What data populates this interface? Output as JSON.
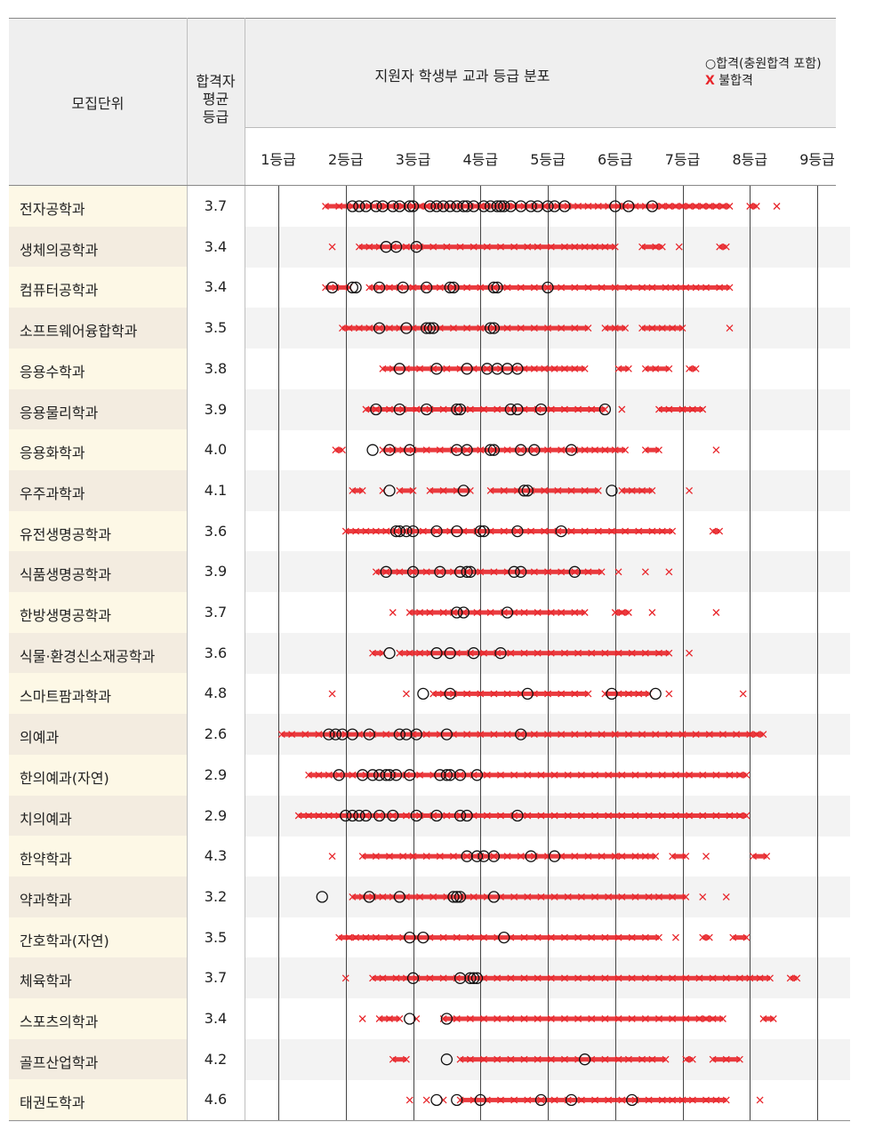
{
  "header": {
    "unit": "모집단위",
    "avg_line1": "합격자",
    "avg_line2": "평균",
    "avg_line3": "등급",
    "dist_title": "지원자 학생부 교과 등급 분포",
    "legend_pass": "○합격(충원합격 포함)",
    "legend_fail_symbol": "X",
    "legend_fail": "불합격",
    "grades": [
      "1등급",
      "2등급",
      "3등급",
      "4등급",
      "5등급",
      "6등급",
      "7등급",
      "8등급",
      "9등급"
    ]
  },
  "colors": {
    "fail": "#e8262b",
    "pass": "#111111",
    "name_band_odd": "#fdf8e6",
    "name_band_even": "#f3ece0"
  },
  "chart_data": {
    "type": "scatter",
    "title": "지원자 학생부 교과 등급 분포",
    "xlabel": "등급",
    "xlim": [
      1,
      9
    ],
    "categories": [
      "전자공학과",
      "생체의공학과",
      "컴퓨터공학과",
      "소프트웨어융합학과",
      "응용수학과",
      "응용물리학과",
      "응용화학과",
      "우주과학과",
      "유전생명공학과",
      "식품생명공학과",
      "한방생명공학과",
      "식물·환경신소재공학과",
      "스마트팜과학과",
      "의예과",
      "한의예과(자연)",
      "치의예과",
      "한약학과",
      "약과학과",
      "간호학과(자연)",
      "체육학과",
      "스포츠의학과",
      "골프산업학과",
      "태권도학과"
    ],
    "average_grade": [
      3.7,
      3.4,
      3.4,
      3.5,
      3.8,
      3.9,
      4.0,
      4.1,
      3.6,
      3.9,
      3.7,
      3.6,
      4.8,
      2.6,
      2.9,
      2.9,
      4.3,
      3.2,
      3.5,
      3.7,
      3.4,
      4.2,
      4.6
    ],
    "series": [
      {
        "name": "합격(충원합격 포함)",
        "marker": "circle",
        "values": [
          [
            2.1,
            2.2,
            2.3,
            2.45,
            2.55,
            2.7,
            2.8,
            2.95,
            3.0,
            3.25,
            3.35,
            3.45,
            3.55,
            3.65,
            3.75,
            3.8,
            3.9,
            4.05,
            4.15,
            4.25,
            4.3,
            4.35,
            4.45,
            4.6,
            4.75,
            4.85,
            5.0,
            5.1,
            5.25,
            6.0,
            6.2,
            6.55
          ],
          [
            2.6,
            2.75,
            3.05
          ],
          [
            1.8,
            2.1,
            2.15,
            2.5,
            2.85,
            3.2,
            3.55,
            3.6,
            4.2,
            4.25,
            5.0
          ],
          [
            2.5,
            2.9,
            3.2,
            3.25,
            3.3,
            4.15,
            4.2
          ],
          [
            2.8,
            3.35,
            3.8,
            4.1,
            4.25,
            4.4,
            4.55
          ],
          [
            2.45,
            2.8,
            3.2,
            3.65,
            3.7,
            4.45,
            4.55,
            4.9,
            5.85
          ],
          [
            2.4,
            2.65,
            2.95,
            3.65,
            3.8,
            4.15,
            4.2,
            4.6,
            4.8,
            5.35
          ],
          [
            2.65,
            3.75,
            4.65,
            4.7,
            5.95
          ],
          [
            2.75,
            2.8,
            2.9,
            3.0,
            3.35,
            3.65,
            4.0,
            4.05,
            4.55,
            5.2
          ],
          [
            2.6,
            3.0,
            3.4,
            3.7,
            3.8,
            3.85,
            4.5,
            4.6,
            5.4
          ],
          [
            3.65,
            3.75,
            4.4
          ],
          [
            2.65,
            3.35,
            3.55,
            3.9,
            4.3
          ],
          [
            3.15,
            3.55,
            4.7,
            5.95,
            6.6
          ],
          [
            1.75,
            1.85,
            1.95,
            2.1,
            2.35,
            2.8,
            2.9,
            3.05,
            3.5,
            4.6
          ],
          [
            1.9,
            2.25,
            2.4,
            2.5,
            2.6,
            2.65,
            2.75,
            2.95,
            3.4,
            3.5,
            3.55,
            3.7,
            3.95
          ],
          [
            2.0,
            2.1,
            2.2,
            2.3,
            2.5,
            2.7,
            3.05,
            3.35,
            3.7,
            3.8,
            4.55
          ],
          [
            3.8,
            3.95,
            4.05,
            4.2,
            4.75,
            5.1
          ],
          [
            1.65,
            2.35,
            2.8,
            3.6,
            3.65,
            3.7,
            4.2
          ],
          [
            2.95,
            3.15,
            4.35
          ],
          [
            3.0,
            3.7,
            3.85,
            3.9,
            3.95
          ],
          [
            2.95,
            3.5
          ],
          [
            3.5,
            5.55
          ],
          [
            3.35,
            3.65,
            4.0,
            4.9,
            5.35,
            6.25
          ]
        ]
      },
      {
        "name": "불합격",
        "marker": "x",
        "values": [
          [
            1.7,
            1.9,
            2.1,
            2.2,
            2.35,
            2.5,
            2.6,
            2.75,
            2.85,
            3.0,
            3.1,
            3.2,
            3.3,
            3.4,
            3.55,
            3.7,
            3.85,
            4.0,
            4.1,
            4.3,
            4.4,
            4.5,
            4.65,
            4.8,
            4.95,
            5.15,
            5.3,
            5.45,
            5.6,
            5.75,
            5.9,
            6.05,
            6.15,
            6.3,
            6.45,
            6.6,
            6.7,
            6.8,
            6.9,
            7.0,
            7.1,
            7.2,
            7.3,
            7.4,
            7.5,
            7.6,
            7.7,
            8.0,
            8.1,
            8.4
          ],
          [
            1.8,
            2.2,
            2.35,
            2.5,
            2.7,
            2.9,
            3.1,
            3.3,
            3.5,
            3.7,
            3.9,
            4.1,
            4.3,
            4.5,
            4.7,
            4.85,
            5.05,
            5.25,
            5.4,
            5.55,
            5.7,
            5.85,
            6.0,
            6.4,
            6.6,
            6.7,
            6.95,
            7.55,
            7.65
          ],
          [
            1.7,
            1.85,
            2.05,
            2.35,
            2.5,
            2.65,
            2.8,
            3.0,
            3.2,
            3.4,
            3.6,
            3.8,
            4.0,
            4.2,
            4.4,
            4.6,
            4.8,
            5.0,
            5.2,
            5.4,
            5.6,
            5.8,
            6.0,
            6.2,
            6.4,
            6.55,
            6.75,
            6.9,
            7.05,
            7.2,
            7.35,
            7.55,
            7.7
          ],
          [
            1.95,
            2.05,
            2.2,
            2.35,
            2.5,
            2.65,
            2.8,
            3.0,
            3.2,
            3.4,
            3.6,
            3.8,
            4.0,
            4.2,
            4.4,
            4.6,
            4.8,
            5.0,
            5.2,
            5.4,
            5.6,
            5.85,
            6.0,
            6.15,
            6.4,
            6.55,
            6.7,
            6.85,
            7.0,
            7.7
          ],
          [
            2.55,
            2.7,
            2.9,
            3.1,
            3.3,
            3.5,
            3.7,
            3.9,
            4.1,
            4.3,
            4.5,
            4.65,
            4.8,
            4.95,
            5.1,
            5.25,
            5.4,
            5.55,
            6.05,
            6.2,
            6.45,
            6.6,
            6.8,
            7.1,
            7.2
          ],
          [
            2.3,
            2.45,
            2.65,
            2.85,
            3.05,
            3.25,
            3.45,
            3.65,
            3.85,
            4.05,
            4.25,
            4.45,
            4.65,
            4.85,
            5.05,
            5.25,
            5.45,
            5.65,
            5.85,
            6.1,
            6.65,
            6.8,
            7.0,
            7.15,
            7.3
          ],
          [
            1.85,
            1.95,
            2.55,
            2.7,
            2.85,
            3.0,
            3.2,
            3.4,
            3.6,
            3.8,
            4.0,
            4.2,
            4.4,
            4.6,
            4.8,
            5.0,
            5.2,
            5.4,
            5.55,
            5.7,
            5.85,
            6.0,
            6.15,
            6.45,
            6.65,
            7.5
          ],
          [
            2.1,
            2.25,
            2.55,
            2.8,
            3.0,
            3.25,
            3.45,
            3.65,
            3.85,
            4.15,
            4.35,
            4.55,
            4.75,
            4.95,
            5.15,
            5.35,
            5.55,
            5.75,
            6.1,
            6.25,
            6.4,
            6.55,
            7.1
          ],
          [
            2.0,
            2.15,
            2.3,
            2.45,
            2.6,
            2.75,
            2.95,
            3.15,
            3.35,
            3.55,
            3.75,
            3.95,
            4.15,
            4.35,
            4.55,
            4.75,
            4.95,
            5.15,
            5.35,
            5.55,
            5.75,
            5.95,
            6.15,
            6.35,
            6.55,
            6.7,
            6.85,
            7.45,
            7.55
          ],
          [
            2.45,
            2.6,
            2.8,
            3.0,
            3.2,
            3.4,
            3.6,
            3.8,
            4.0,
            4.2,
            4.4,
            4.6,
            4.8,
            5.0,
            5.2,
            5.4,
            5.6,
            5.8,
            6.05,
            6.45,
            6.8
          ],
          [
            2.7,
            2.95,
            3.1,
            3.25,
            3.45,
            3.6,
            3.75,
            3.95,
            4.15,
            4.35,
            4.5,
            4.65,
            4.85,
            5.05,
            5.2,
            5.4,
            5.55,
            6.0,
            6.1,
            6.2,
            6.55,
            7.5
          ],
          [
            2.4,
            2.55,
            2.8,
            2.95,
            3.1,
            3.25,
            3.45,
            3.65,
            3.85,
            4.05,
            4.25,
            4.45,
            4.65,
            4.85,
            5.05,
            5.25,
            5.45,
            5.65,
            5.85,
            6.05,
            6.25,
            6.45,
            6.65,
            6.8,
            7.1
          ],
          [
            1.8,
            2.9,
            3.3,
            3.45,
            3.6,
            3.8,
            4.0,
            4.2,
            4.4,
            4.6,
            4.8,
            5.0,
            5.2,
            5.4,
            5.6,
            5.85,
            6.05,
            6.2,
            6.35,
            6.5,
            6.8,
            7.9
          ],
          [
            1.05,
            1.2,
            1.4,
            1.6,
            1.8,
            2.0,
            2.2,
            2.4,
            2.6,
            2.8,
            3.0,
            3.2,
            3.4,
            3.6,
            3.8,
            4.0,
            4.2,
            4.4,
            4.6,
            4.8,
            5.0,
            5.2,
            5.4,
            5.6,
            5.8,
            6.0,
            6.2,
            6.4,
            6.6,
            6.8,
            7.0,
            7.2,
            7.4,
            7.6,
            7.8,
            8.0,
            8.1,
            8.2
          ],
          [
            1.45,
            1.6,
            1.75,
            1.9,
            2.1,
            2.3,
            2.5,
            2.7,
            2.9,
            3.1,
            3.3,
            3.5,
            3.7,
            3.9,
            4.1,
            4.3,
            4.5,
            4.7,
            4.9,
            5.1,
            5.3,
            5.5,
            5.7,
            5.9,
            6.1,
            6.3,
            6.5,
            6.7,
            6.9,
            7.1,
            7.3,
            7.5,
            7.7,
            7.85,
            7.95
          ],
          [
            1.3,
            1.45,
            1.6,
            1.75,
            1.9,
            2.1,
            2.3,
            2.5,
            2.7,
            2.9,
            3.1,
            3.3,
            3.5,
            3.7,
            3.9,
            4.1,
            4.3,
            4.5,
            4.7,
            4.9,
            5.1,
            5.3,
            5.5,
            5.7,
            5.9,
            6.1,
            6.3,
            6.5,
            6.7,
            6.9,
            7.1,
            7.3,
            7.5,
            7.7,
            7.85,
            7.95
          ],
          [
            1.8,
            2.25,
            2.45,
            2.65,
            2.85,
            3.0,
            3.2,
            3.4,
            3.6,
            3.8,
            4.0,
            4.2,
            4.4,
            4.6,
            4.8,
            5.0,
            5.2,
            5.4,
            5.6,
            5.8,
            6.0,
            6.1,
            6.3,
            6.45,
            6.6,
            6.85,
            7.05,
            7.35,
            8.05,
            8.25
          ],
          [
            2.1,
            2.25,
            2.4,
            2.55,
            2.7,
            2.9,
            3.1,
            3.3,
            3.5,
            3.7,
            3.9,
            4.1,
            4.3,
            4.5,
            4.7,
            4.9,
            5.1,
            5.3,
            5.5,
            5.7,
            5.9,
            6.1,
            6.3,
            6.5,
            6.65,
            6.85,
            7.05,
            7.3,
            7.65
          ],
          [
            1.9,
            2.05,
            2.15,
            2.3,
            2.45,
            2.65,
            2.85,
            3.05,
            3.25,
            3.45,
            3.65,
            3.85,
            4.05,
            4.25,
            4.45,
            4.65,
            4.85,
            5.05,
            5.25,
            5.45,
            5.65,
            5.85,
            6.05,
            6.25,
            6.45,
            6.65,
            6.9,
            7.3,
            7.4,
            7.75,
            7.95
          ],
          [
            2.0,
            2.4,
            2.55,
            2.75,
            2.9,
            3.05,
            3.25,
            3.45,
            3.65,
            3.85,
            4.05,
            4.25,
            4.45,
            4.65,
            4.85,
            5.05,
            5.25,
            5.45,
            5.65,
            5.85,
            6.05,
            6.25,
            6.45,
            6.65,
            6.85,
            7.05,
            7.25,
            7.45,
            7.65,
            7.85,
            8.0,
            8.15,
            8.3,
            8.6,
            8.7
          ],
          [
            2.25,
            2.5,
            2.65,
            2.8,
            3.05,
            3.45,
            3.65,
            3.85,
            4.05,
            4.25,
            4.45,
            4.65,
            4.85,
            5.05,
            5.25,
            5.45,
            5.65,
            5.85,
            6.05,
            6.25,
            6.45,
            6.65,
            6.85,
            7.05,
            7.25,
            7.35,
            7.45,
            7.6,
            8.2,
            8.35
          ],
          [
            2.7,
            2.9,
            3.7,
            3.85,
            4.05,
            4.25,
            4.45,
            4.65,
            4.85,
            5.05,
            5.25,
            5.45,
            5.65,
            5.85,
            6.05,
            6.2,
            6.4,
            6.55,
            6.75,
            7.05,
            7.15,
            7.45,
            7.65,
            7.85
          ],
          [
            2.95,
            3.2,
            3.45,
            3.7,
            3.9,
            4.1,
            4.3,
            4.5,
            4.7,
            4.9,
            5.1,
            5.3,
            5.5,
            5.7,
            5.9,
            6.1,
            6.3,
            6.5,
            6.7,
            6.85,
            7.0,
            7.15,
            7.35,
            7.5,
            7.65,
            8.15
          ]
        ]
      }
    ]
  }
}
